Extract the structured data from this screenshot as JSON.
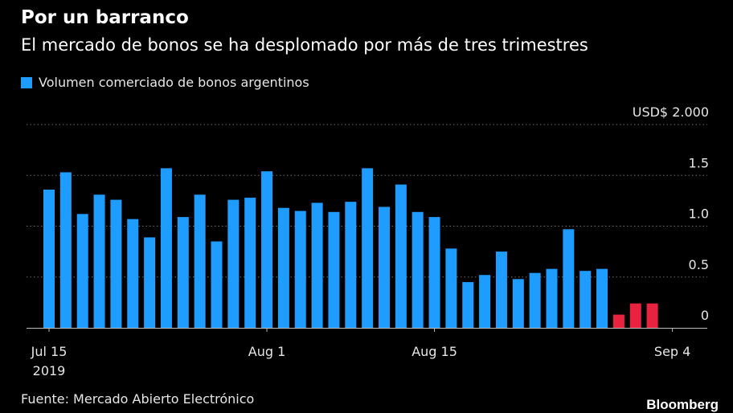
{
  "header": {
    "title": "Por un barranco",
    "subtitle": "El mercado de bonos se ha desplomado por más de tres trimestres"
  },
  "legend": {
    "label": "Volumen comerciado de bonos argentinos",
    "color": "#1e9cff"
  },
  "footer": {
    "source": "Fuente: Mercado Abierto Electrónico",
    "brand": "Bloomberg"
  },
  "colors": {
    "primary": "#1e9cff",
    "highlight": "#e8233f",
    "background": "#000000",
    "grid": "#6b6b6b"
  },
  "chart_data": {
    "type": "bar",
    "title": "Por un barranco",
    "subtitle": "El mercado de bonos se ha desplomado por más de tres trimestres",
    "ylim": [
      0,
      2.0
    ],
    "y_unit_label": "USD$",
    "y_ticks": [
      {
        "value": 0,
        "label": "0"
      },
      {
        "value": 0.5,
        "label": "0.5"
      },
      {
        "value": 1.0,
        "label": "1.0"
      },
      {
        "value": 1.5,
        "label": "1.5"
      },
      {
        "value": 2.0,
        "label": "2.000"
      }
    ],
    "x_ticks": [
      {
        "date": "2019-07-15",
        "label": "Jul 15",
        "sublabel": "2019"
      },
      {
        "date": "2019-08-01",
        "label": "Aug 1",
        "sublabel": ""
      },
      {
        "date": "2019-08-15",
        "label": "Aug 15",
        "sublabel": ""
      },
      {
        "date": "2019-09-04",
        "label": "Sep 4",
        "sublabel": ""
      }
    ],
    "grid": true,
    "legend_position": "top-left",
    "series": [
      {
        "name": "Volumen comerciado de bonos argentinos",
        "bars": [
          {
            "date": "2019-07-15",
            "value": 1.36,
            "highlight": false
          },
          {
            "date": "2019-07-16",
            "value": 1.53,
            "highlight": false
          },
          {
            "date": "2019-07-17",
            "value": 1.12,
            "highlight": false
          },
          {
            "date": "2019-07-18",
            "value": 1.31,
            "highlight": false
          },
          {
            "date": "2019-07-19",
            "value": 1.26,
            "highlight": false
          },
          {
            "date": "2019-07-22",
            "value": 1.07,
            "highlight": false
          },
          {
            "date": "2019-07-23",
            "value": 0.89,
            "highlight": false
          },
          {
            "date": "2019-07-24",
            "value": 1.57,
            "highlight": false
          },
          {
            "date": "2019-07-25",
            "value": 1.09,
            "highlight": false
          },
          {
            "date": "2019-07-26",
            "value": 1.31,
            "highlight": false
          },
          {
            "date": "2019-07-29",
            "value": 0.85,
            "highlight": false
          },
          {
            "date": "2019-07-30",
            "value": 1.26,
            "highlight": false
          },
          {
            "date": "2019-07-31",
            "value": 1.28,
            "highlight": false
          },
          {
            "date": "2019-08-01",
            "value": 1.54,
            "highlight": false
          },
          {
            "date": "2019-08-02",
            "value": 1.18,
            "highlight": false
          },
          {
            "date": "2019-08-05",
            "value": 1.15,
            "highlight": false
          },
          {
            "date": "2019-08-06",
            "value": 1.23,
            "highlight": false
          },
          {
            "date": "2019-08-07",
            "value": 1.14,
            "highlight": false
          },
          {
            "date": "2019-08-08",
            "value": 1.24,
            "highlight": false
          },
          {
            "date": "2019-08-09",
            "value": 1.57,
            "highlight": false
          },
          {
            "date": "2019-08-12",
            "value": 1.19,
            "highlight": false
          },
          {
            "date": "2019-08-13",
            "value": 1.41,
            "highlight": false
          },
          {
            "date": "2019-08-14",
            "value": 1.14,
            "highlight": false
          },
          {
            "date": "2019-08-15",
            "value": 1.09,
            "highlight": false
          },
          {
            "date": "2019-08-16",
            "value": 0.78,
            "highlight": false
          },
          {
            "date": "2019-08-19",
            "value": 0.45,
            "highlight": false
          },
          {
            "date": "2019-08-20",
            "value": 0.52,
            "highlight": false
          },
          {
            "date": "2019-08-21",
            "value": 0.75,
            "highlight": false
          },
          {
            "date": "2019-08-22",
            "value": 0.48,
            "highlight": false
          },
          {
            "date": "2019-08-23",
            "value": 0.54,
            "highlight": false
          },
          {
            "date": "2019-08-26",
            "value": 0.58,
            "highlight": false
          },
          {
            "date": "2019-08-27",
            "value": 0.97,
            "highlight": false
          },
          {
            "date": "2019-08-28",
            "value": 0.56,
            "highlight": false
          },
          {
            "date": "2019-08-29",
            "value": 0.58,
            "highlight": false
          },
          {
            "date": "2019-08-30",
            "value": 0.13,
            "highlight": true
          },
          {
            "date": "2019-09-02",
            "value": 0.24,
            "highlight": true
          },
          {
            "date": "2019-09-03",
            "value": 0.24,
            "highlight": true
          }
        ]
      }
    ]
  }
}
